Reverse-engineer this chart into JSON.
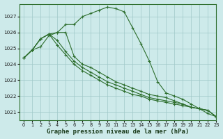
{
  "title": "Graphe pression niveau de la mer (hPa)",
  "background_color": "#cdeaea",
  "grid_color": "#a0c8c8",
  "line_color": "#2d6e2d",
  "xlim": [
    -0.5,
    23
  ],
  "ylim": [
    1020.5,
    1027.8
  ],
  "yticks": [
    1021,
    1022,
    1023,
    1024,
    1025,
    1026,
    1027
  ],
  "xticks": [
    0,
    1,
    2,
    3,
    4,
    5,
    6,
    7,
    8,
    9,
    10,
    11,
    12,
    13,
    14,
    15,
    16,
    17,
    18,
    19,
    20,
    21,
    22,
    23
  ],
  "series": [
    [
      1024.4,
      1024.9,
      1025.1,
      1025.8,
      1026.0,
      1026.5,
      1026.5,
      1027.0,
      1027.2,
      1027.4,
      1027.6,
      1027.5,
      1027.3,
      1026.3,
      1025.3,
      1024.2,
      1022.9,
      1022.2,
      1022.0,
      1021.8,
      1021.5,
      1021.2,
      1020.9,
      1020.7
    ],
    [
      1024.4,
      1024.9,
      1025.6,
      1025.9,
      1026.0,
      1026.0,
      1024.5,
      1024.0,
      1023.8,
      1023.5,
      1023.2,
      1022.9,
      1022.7,
      1022.5,
      1022.3,
      1022.1,
      1022.0,
      1021.9,
      1021.7,
      1021.5,
      1021.3,
      1021.2,
      1021.1,
      1020.7
    ],
    [
      1024.4,
      1024.9,
      1025.6,
      1025.9,
      1025.5,
      1024.8,
      1024.2,
      1023.8,
      1023.5,
      1023.2,
      1022.9,
      1022.7,
      1022.5,
      1022.3,
      1022.1,
      1021.9,
      1021.8,
      1021.7,
      1021.6,
      1021.5,
      1021.3,
      1021.2,
      1021.1,
      1020.7
    ],
    [
      1024.4,
      1024.9,
      1025.6,
      1025.9,
      1025.2,
      1024.6,
      1024.0,
      1023.6,
      1023.3,
      1023.0,
      1022.7,
      1022.5,
      1022.3,
      1022.1,
      1022.0,
      1021.8,
      1021.7,
      1021.6,
      1021.5,
      1021.4,
      1021.3,
      1021.2,
      1021.1,
      1020.7
    ]
  ]
}
